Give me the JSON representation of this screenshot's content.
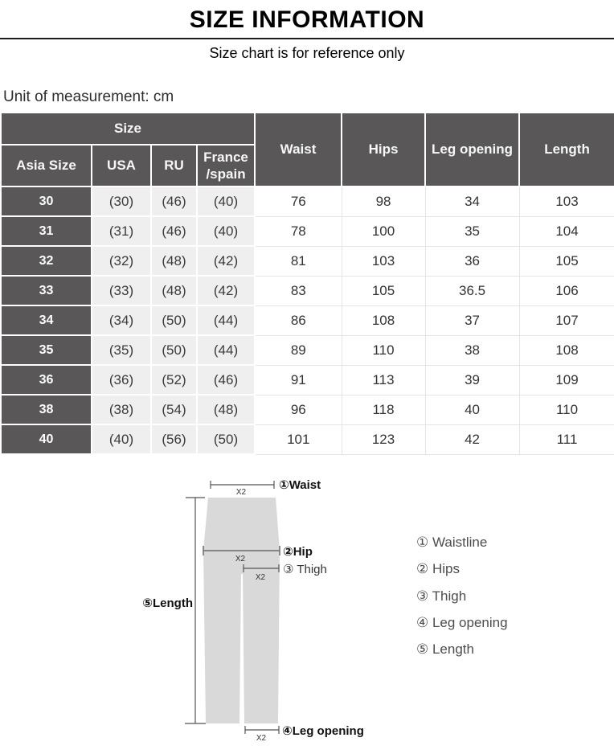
{
  "header": {
    "title": "SIZE INFORMATION",
    "subtitle": "Size chart is for reference only",
    "unit_label": "Unit of measurement: cm"
  },
  "table": {
    "group_header": "Size",
    "columns": {
      "asia": "Asia Size",
      "usa": "USA",
      "ru": "RU",
      "france": "France\n/spain",
      "waist": "Waist",
      "hips": "Hips",
      "leg_opening": "Leg opening",
      "length": "Length"
    },
    "rows": [
      {
        "asia": "30",
        "usa": "(30)",
        "ru": "(46)",
        "france": "(40)",
        "waist": "76",
        "hips": "98",
        "leg_opening": "34",
        "length": "103"
      },
      {
        "asia": "31",
        "usa": "(31)",
        "ru": "(46)",
        "france": "(40)",
        "waist": "78",
        "hips": "100",
        "leg_opening": "35",
        "length": "104"
      },
      {
        "asia": "32",
        "usa": "(32)",
        "ru": "(48)",
        "france": "(42)",
        "waist": "81",
        "hips": "103",
        "leg_opening": "36",
        "length": "105"
      },
      {
        "asia": "33",
        "usa": "(33)",
        "ru": "(48)",
        "france": "(42)",
        "waist": "83",
        "hips": "105",
        "leg_opening": "36.5",
        "length": "106"
      },
      {
        "asia": "34",
        "usa": "(34)",
        "ru": "(50)",
        "france": "(44)",
        "waist": "86",
        "hips": "108",
        "leg_opening": "37",
        "length": "107"
      },
      {
        "asia": "35",
        "usa": "(35)",
        "ru": "(50)",
        "france": "(44)",
        "waist": "89",
        "hips": "110",
        "leg_opening": "38",
        "length": "108"
      },
      {
        "asia": "36",
        "usa": "(36)",
        "ru": "(52)",
        "france": "(46)",
        "waist": "91",
        "hips": "113",
        "leg_opening": "39",
        "length": "109"
      },
      {
        "asia": "38",
        "usa": "(38)",
        "ru": "(54)",
        "france": "(48)",
        "waist": "96",
        "hips": "118",
        "leg_opening": "40",
        "length": "110"
      },
      {
        "asia": "40",
        "usa": "(40)",
        "ru": "(56)",
        "france": "(50)",
        "waist": "101",
        "hips": "123",
        "leg_opening": "42",
        "length": "111"
      }
    ]
  },
  "diagram": {
    "labels": {
      "waist": "①Waist",
      "hip": "②Hip",
      "thigh": "③ Thigh",
      "leg_opening": "④Leg opening",
      "length": "⑤Length",
      "multiplier": "X2"
    },
    "legend": [
      "① Waistline",
      "② Hips",
      "③ Thigh",
      "④ Leg opening",
      "⑤ Length"
    ]
  },
  "colors": {
    "table_header_bg": "#595757",
    "alt_cell_bg": "#f0efef",
    "pants_fill": "#d9d9d9",
    "measure_line": "#555555"
  }
}
